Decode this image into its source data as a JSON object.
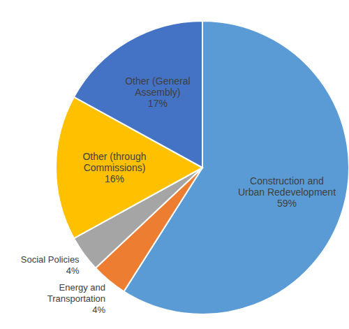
{
  "chart_data": {
    "type": "pie",
    "categories": [
      "Construction and Urban Redevelopment",
      "Energy and Transportation",
      "Social Policies",
      "Other (through Commissions)",
      "Other (General Assembly)"
    ],
    "values": [
      59,
      4,
      4,
      16,
      17
    ],
    "value_labels": [
      "59%",
      "4%",
      "4%",
      "16%",
      "17%"
    ],
    "colors": [
      "#5b9bd5",
      "#ed7d31",
      "#a5a5a5",
      "#ffc000",
      "#4472c4"
    ],
    "data_labels": true
  }
}
